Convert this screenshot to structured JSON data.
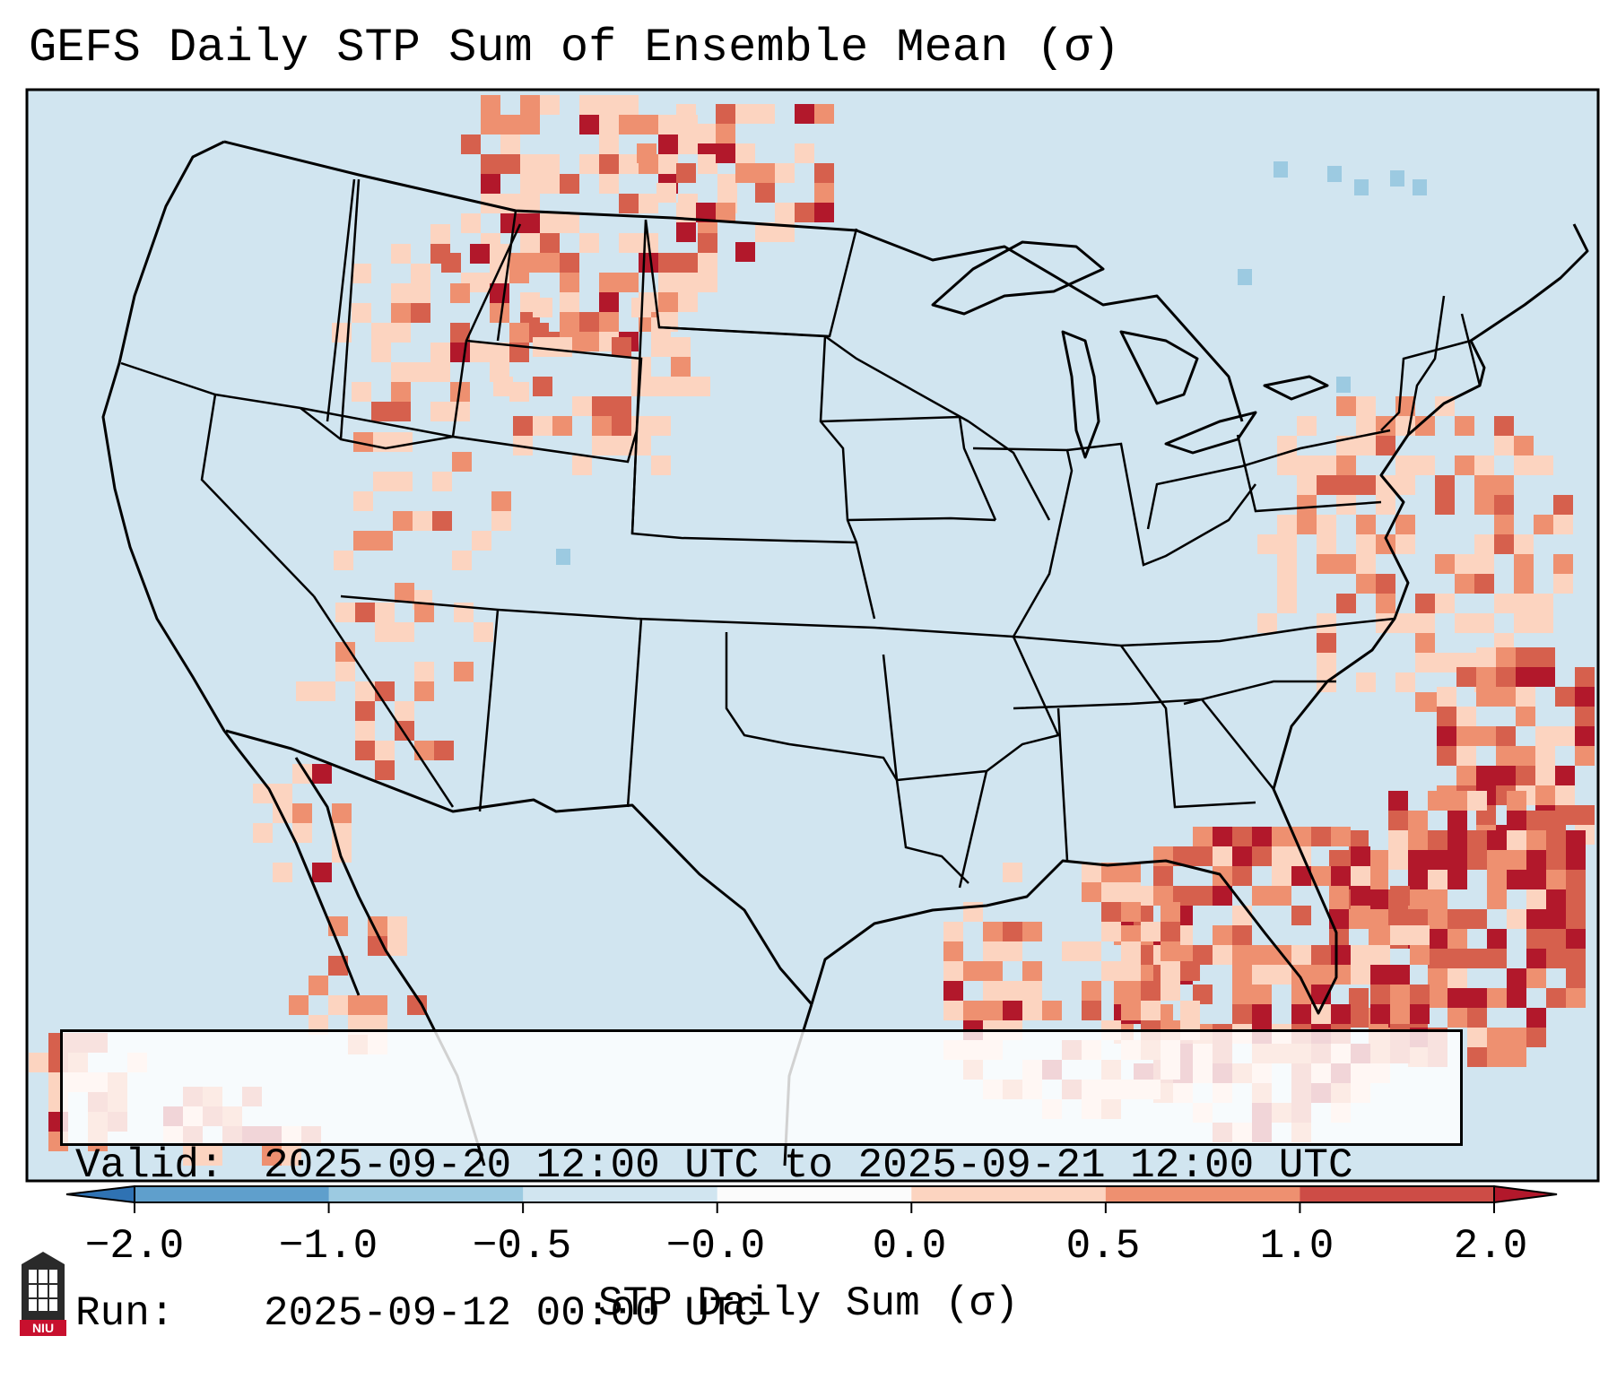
{
  "title": "GEFS Daily STP Sum of Ensemble Mean (σ)",
  "info": {
    "valid_label": "Valid:",
    "valid_value": "2025-09-20 12:00 UTC to 2025-09-21 12:00 UTC",
    "run_label": "Run:",
    "run_value": "2025-09-12 00:00 UTC"
  },
  "colorbar": {
    "label": "STP Daily Sum (σ)",
    "ticks": [
      "−2.0",
      "−1.0",
      "−0.5",
      "−0.0",
      "0.0",
      "0.5",
      "1.0",
      "2.0"
    ],
    "colors": [
      "#2f72b3",
      "#5f9fcc",
      "#9ccae1",
      "#d1e5f0",
      "#fbfbfb",
      "#fcd4c0",
      "#ee9070",
      "#cd4c46",
      "#b2182b"
    ]
  },
  "logo": {
    "text": "NIU"
  },
  "colors": {
    "background_field": "#d1e5f0",
    "light_pos": "#fcd4c0",
    "mid_pos": "#ee9070",
    "high_pos": "#d6604d",
    "max_pos": "#b2182b",
    "light_neg": "#9ccae1"
  }
}
